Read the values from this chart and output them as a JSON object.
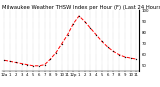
{
  "title": "Milwaukee Weather THSW Index per Hour (F) (Last 24 Hours)",
  "x_values": [
    0,
    1,
    2,
    3,
    4,
    5,
    6,
    7,
    8,
    9,
    10,
    11,
    12,
    13,
    14,
    15,
    16,
    17,
    18,
    19,
    20,
    21,
    22,
    23
  ],
  "y_values": [
    55,
    54,
    53,
    52,
    51,
    50,
    50,
    51,
    56,
    62,
    70,
    78,
    88,
    95,
    90,
    84,
    78,
    72,
    67,
    63,
    60,
    58,
    57,
    56
  ],
  "xlim": [
    -0.5,
    23.5
  ],
  "ylim": [
    45,
    100
  ],
  "yticks": [
    50,
    60,
    70,
    80,
    90,
    100
  ],
  "xtick_labels": [
    "12a",
    "1",
    "2",
    "3",
    "4",
    "5",
    "6",
    "7",
    "8",
    "9",
    "10",
    "11",
    "12p",
    "1",
    "2",
    "3",
    "4",
    "5",
    "6",
    "7",
    "8",
    "9",
    "10",
    "11"
  ],
  "line_color": "#ff0000",
  "marker_color": "#000000",
  "grid_color": "#aaaaaa",
  "bg_color": "#ffffff",
  "plot_bg": "#ffffff",
  "title_fontsize": 3.8,
  "tick_fontsize": 2.8,
  "line_width": 0.7,
  "marker_size": 1.5
}
